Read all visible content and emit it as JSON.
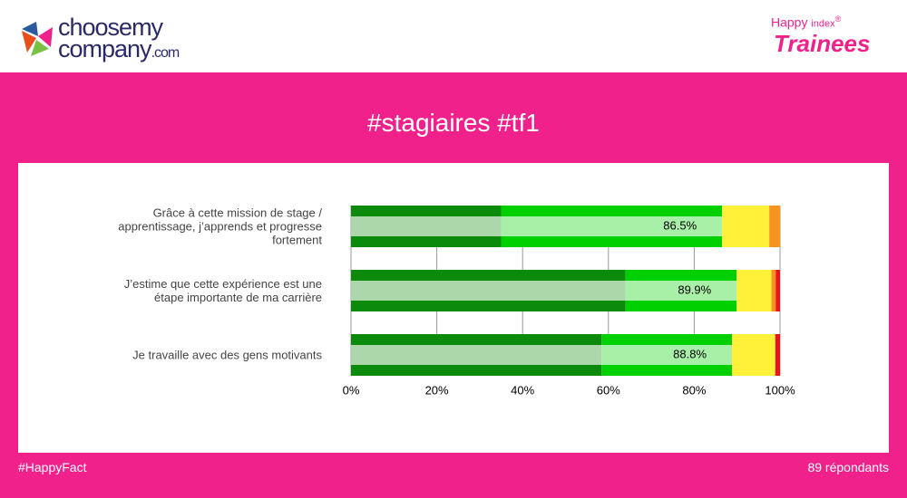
{
  "logo": {
    "line1": "choosemy",
    "line2": "company",
    "domain": ".com"
  },
  "badge": {
    "line1": "Happy",
    "line1b": "index",
    "mark": "®",
    "line2": "Trainees"
  },
  "footer": {
    "left": "#HappyFact",
    "right": "89 répondants"
  },
  "chart_data": {
    "type": "stacked_bar_h",
    "title": "#stagiaires #tf1",
    "categories": [
      "Grâce à cette mission de stage / apprentissage, j’apprends et progresse fortement",
      "J’estime que cette expérience est une étape importante de ma carrière",
      "Je travaille avec des gens motivants"
    ],
    "series": [
      {
        "color": "#0b8a0b",
        "values": [
          35,
          64,
          58.4
        ]
      },
      {
        "color": "#00d000",
        "values": [
          51.5,
          25.9,
          30.4
        ]
      },
      {
        "color": "#fff03a",
        "values": [
          11,
          8.1,
          10.1
        ]
      },
      {
        "color": "#f7941d",
        "values": [
          2.5,
          1,
          0
        ]
      },
      {
        "color": "#e8141b",
        "values": [
          0,
          1,
          1.1
        ]
      }
    ],
    "overlay": {
      "values": [
        86.5,
        89.9,
        88.8
      ],
      "value_labels": [
        "86.5%",
        "89.9%",
        "88.8%"
      ]
    },
    "xlim": [
      0,
      100
    ],
    "xticks": [
      {
        "value": 0,
        "label": "0%"
      },
      {
        "value": 20,
        "label": "20%"
      },
      {
        "value": 40,
        "label": "40%"
      },
      {
        "value": 60,
        "label": "60%"
      },
      {
        "value": 80,
        "label": "80%"
      },
      {
        "value": 100,
        "label": "100%"
      }
    ],
    "grid": true
  }
}
